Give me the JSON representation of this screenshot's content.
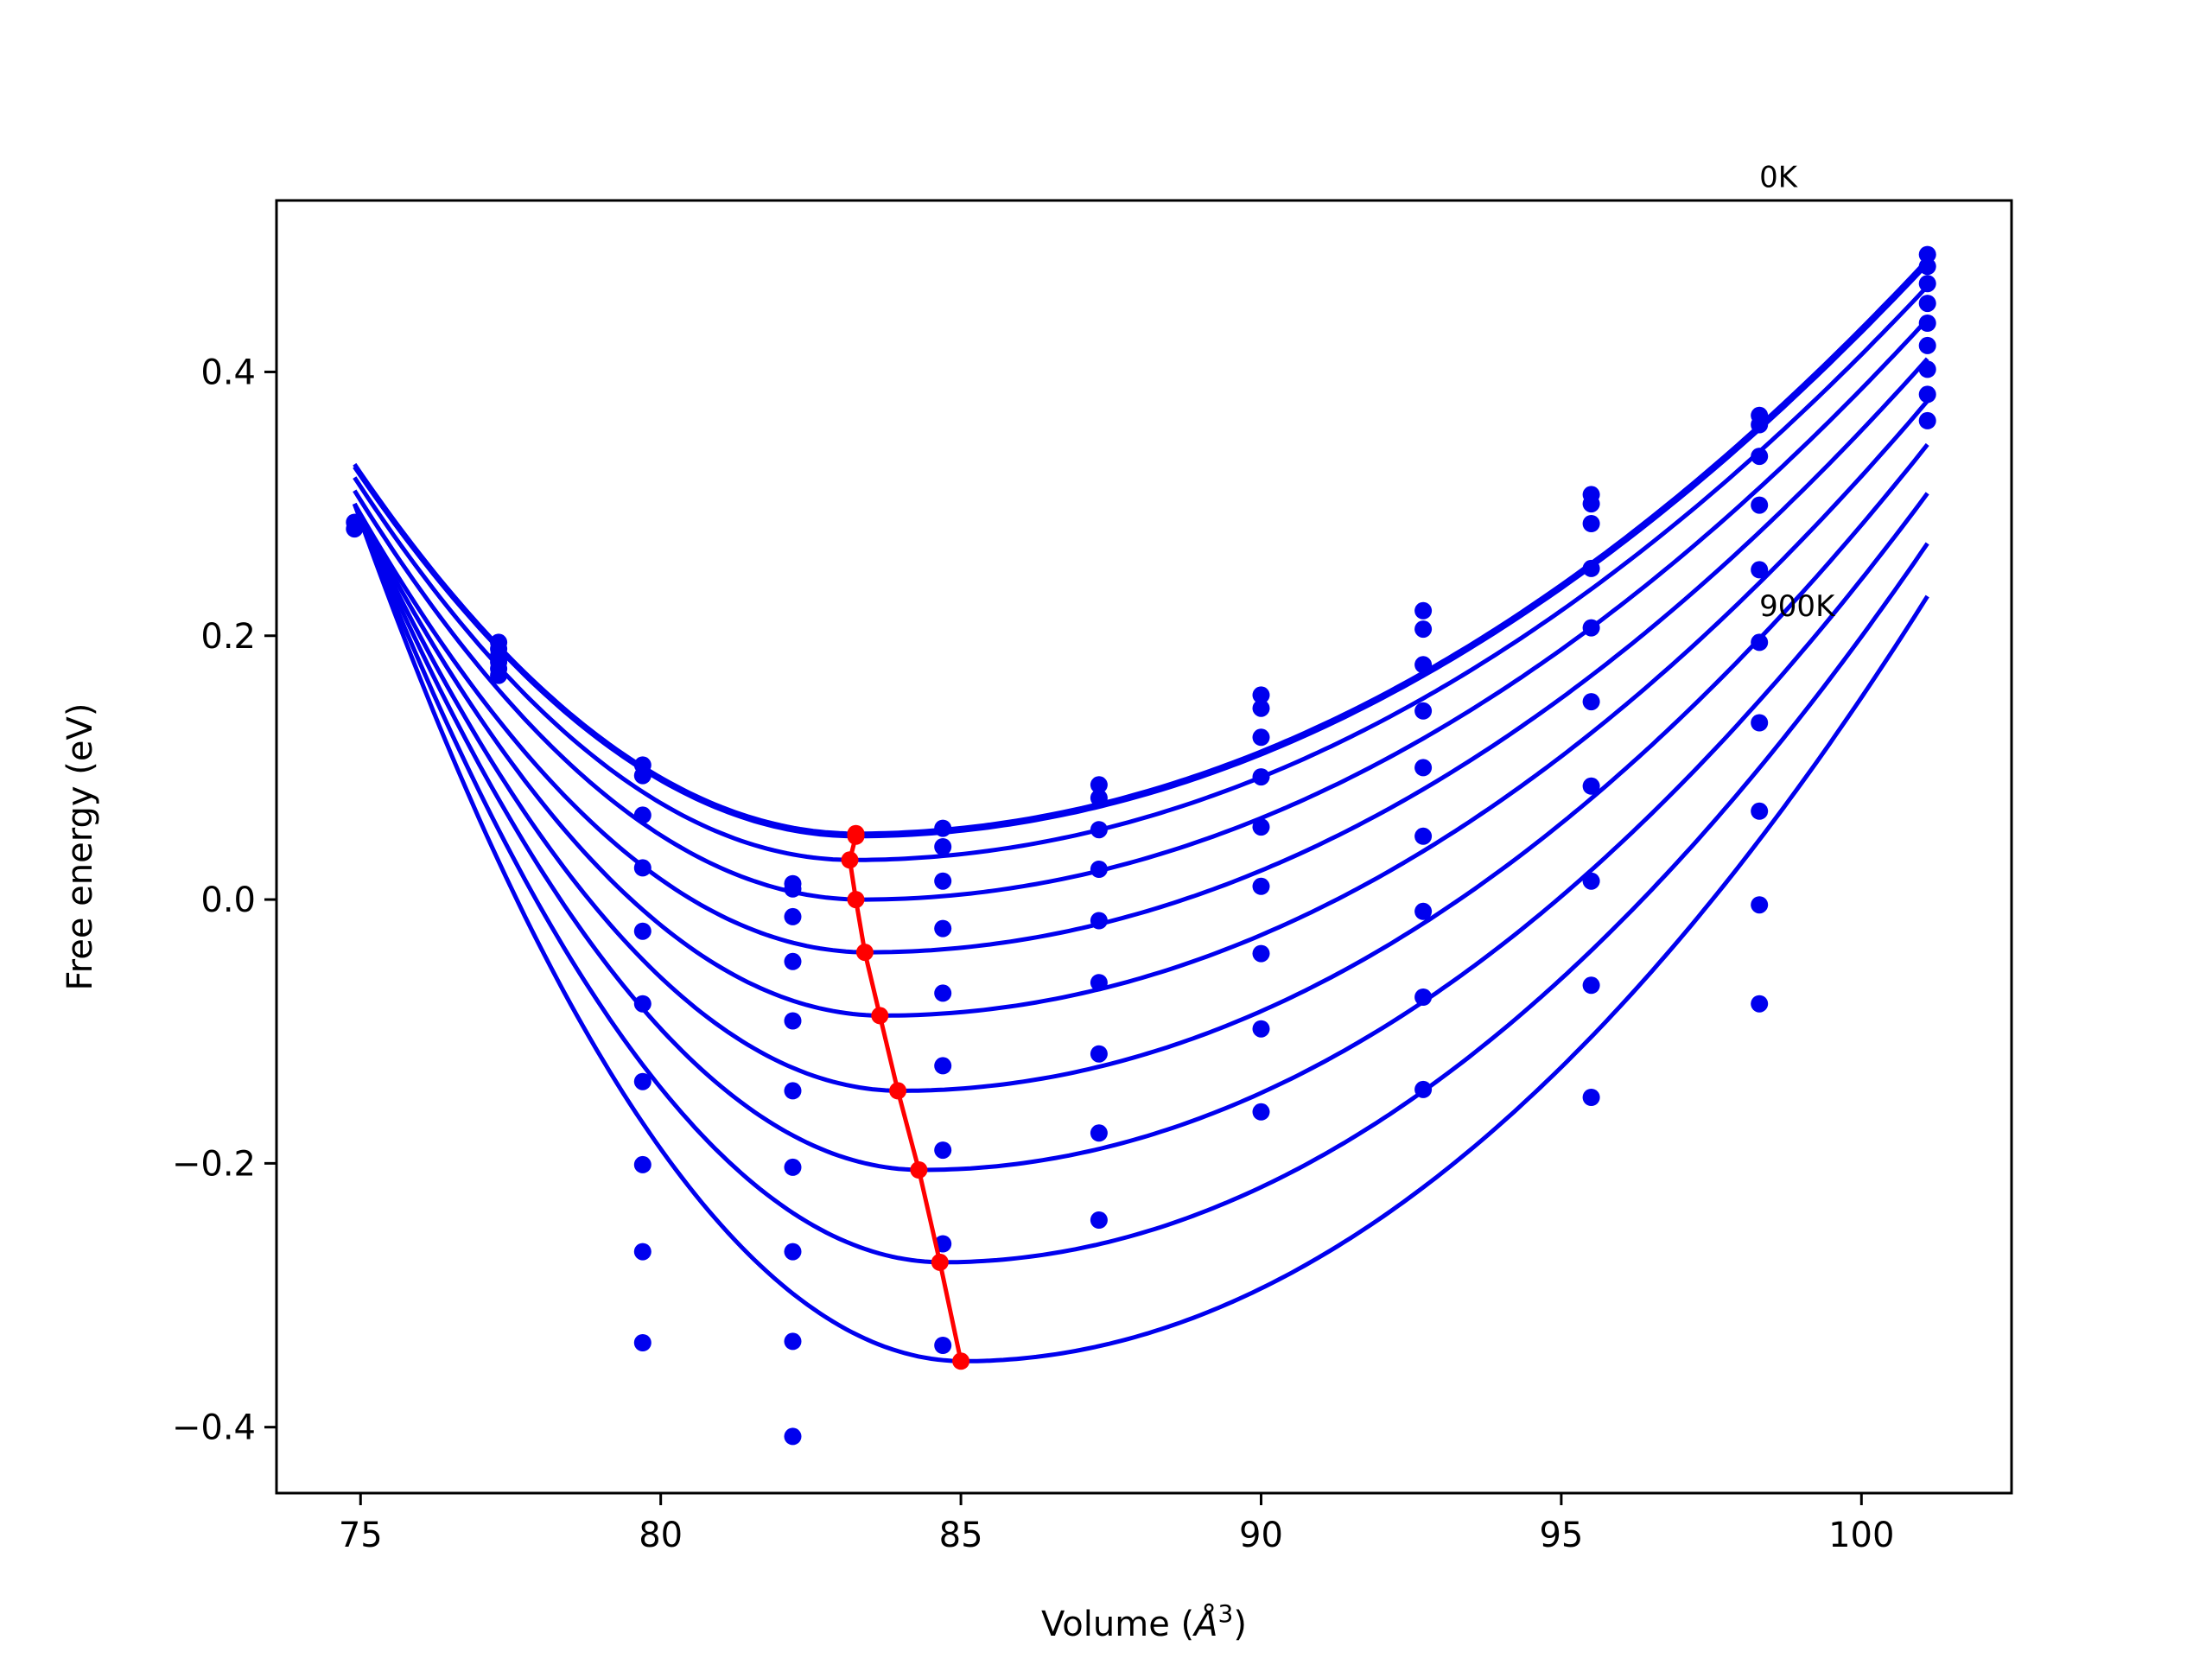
{
  "chart_data": {
    "type": "scatter",
    "title": "",
    "xlabel": "Volume (",
    "xlabel_symbol": "Å",
    "xlabel_exp": "3",
    "xlabel_close": ")",
    "ylabel": "Free energy (eV)",
    "xlim": [
      73.6,
      102.5
    ],
    "ylim": [
      -0.45,
      0.53
    ],
    "xticks": [
      75,
      80,
      85,
      90,
      95,
      100
    ],
    "xtick_labels": [
      "75",
      "80",
      "85",
      "90",
      "95",
      "100"
    ],
    "yticks": [
      -0.4,
      -0.2,
      0.0,
      0.2,
      0.4
    ],
    "ytick_labels": [
      "−0.4",
      "−0.2",
      "0.0",
      "0.2",
      "0.4"
    ],
    "grid": false,
    "colors": {
      "curve": "#0000ee",
      "points": "#0000ee",
      "min_path": "#ff0000",
      "axes": "#000000"
    },
    "annotations": [
      {
        "text": "0K",
        "x": 98.3,
        "y": 0.54
      },
      {
        "text": "900K",
        "x": 98.3,
        "y": 0.215
      }
    ],
    "fit_curves": [
      {
        "v0": 83.25,
        "e0": 0.05,
        "left": 0.33,
        "right": 0.485
      },
      {
        "v0": 83.25,
        "e0": 0.048,
        "left": 0.328,
        "right": 0.482
      },
      {
        "v0": 83.2,
        "e0": 0.03,
        "left": 0.32,
        "right": 0.465
      },
      {
        "v0": 83.35,
        "e0": 0.0,
        "left": 0.31,
        "right": 0.44
      },
      {
        "v0": 83.45,
        "e0": -0.04,
        "left": 0.3,
        "right": 0.41
      },
      {
        "v0": 83.7,
        "e0": -0.088,
        "left": 0.3,
        "right": 0.378
      },
      {
        "v0": 84.0,
        "e0": -0.145,
        "left": 0.3,
        "right": 0.345
      },
      {
        "v0": 84.35,
        "e0": -0.205,
        "left": 0.3,
        "right": 0.308
      },
      {
        "v0": 84.7,
        "e0": -0.275,
        "left": 0.3,
        "right": 0.27
      },
      {
        "v0": 85.05,
        "e0": -0.35,
        "left": 0.3,
        "right": 0.23
      }
    ],
    "data_points": [
      {
        "x": 74.9,
        "y": 0.281
      },
      {
        "x": 74.9,
        "y": 0.286
      },
      {
        "x": 77.3,
        "y": 0.195
      },
      {
        "x": 77.3,
        "y": 0.19
      },
      {
        "x": 77.3,
        "y": 0.185
      },
      {
        "x": 77.3,
        "y": 0.18
      },
      {
        "x": 77.3,
        "y": 0.175
      },
      {
        "x": 77.3,
        "y": 0.17
      },
      {
        "x": 79.7,
        "y": 0.102
      },
      {
        "x": 79.7,
        "y": 0.094
      },
      {
        "x": 79.7,
        "y": 0.064
      },
      {
        "x": 79.7,
        "y": 0.024
      },
      {
        "x": 79.7,
        "y": -0.024
      },
      {
        "x": 79.7,
        "y": -0.079
      },
      {
        "x": 79.7,
        "y": -0.138
      },
      {
        "x": 79.7,
        "y": -0.201
      },
      {
        "x": 79.7,
        "y": -0.267
      },
      {
        "x": 79.7,
        "y": -0.336
      },
      {
        "x": 82.2,
        "y": 0.012
      },
      {
        "x": 82.2,
        "y": 0.008
      },
      {
        "x": 82.2,
        "y": -0.013
      },
      {
        "x": 82.2,
        "y": -0.047
      },
      {
        "x": 82.2,
        "y": -0.092
      },
      {
        "x": 82.2,
        "y": -0.145
      },
      {
        "x": 82.2,
        "y": -0.203
      },
      {
        "x": 82.2,
        "y": -0.267
      },
      {
        "x": 82.2,
        "y": -0.335
      },
      {
        "x": 82.2,
        "y": -0.407
      },
      {
        "x": 84.7,
        "y": 0.054
      },
      {
        "x": 84.7,
        "y": 0.04
      },
      {
        "x": 84.7,
        "y": 0.014
      },
      {
        "x": 84.7,
        "y": -0.022
      },
      {
        "x": 84.7,
        "y": -0.071
      },
      {
        "x": 84.7,
        "y": -0.126
      },
      {
        "x": 84.7,
        "y": -0.19
      },
      {
        "x": 84.7,
        "y": -0.261
      },
      {
        "x": 84.7,
        "y": -0.338
      },
      {
        "x": 87.3,
        "y": 0.087
      },
      {
        "x": 87.3,
        "y": 0.077
      },
      {
        "x": 87.3,
        "y": 0.053
      },
      {
        "x": 87.3,
        "y": 0.023
      },
      {
        "x": 87.3,
        "y": -0.016
      },
      {
        "x": 87.3,
        "y": -0.063
      },
      {
        "x": 87.3,
        "y": -0.117
      },
      {
        "x": 87.3,
        "y": -0.177
      },
      {
        "x": 87.3,
        "y": -0.243
      },
      {
        "x": 90.0,
        "y": 0.155
      },
      {
        "x": 90.0,
        "y": 0.145
      },
      {
        "x": 90.0,
        "y": 0.123
      },
      {
        "x": 90.0,
        "y": 0.093
      },
      {
        "x": 90.0,
        "y": 0.055
      },
      {
        "x": 90.0,
        "y": 0.01
      },
      {
        "x": 90.0,
        "y": -0.041
      },
      {
        "x": 90.0,
        "y": -0.098
      },
      {
        "x": 90.0,
        "y": -0.161
      },
      {
        "x": 92.7,
        "y": 0.219
      },
      {
        "x": 92.7,
        "y": 0.205
      },
      {
        "x": 92.7,
        "y": 0.178
      },
      {
        "x": 92.7,
        "y": 0.143
      },
      {
        "x": 92.7,
        "y": 0.1
      },
      {
        "x": 92.7,
        "y": 0.048
      },
      {
        "x": 92.7,
        "y": -0.009
      },
      {
        "x": 92.7,
        "y": -0.074
      },
      {
        "x": 92.7,
        "y": -0.144
      },
      {
        "x": 95.5,
        "y": 0.307
      },
      {
        "x": 95.5,
        "y": 0.3
      },
      {
        "x": 95.5,
        "y": 0.285
      },
      {
        "x": 95.5,
        "y": 0.251
      },
      {
        "x": 95.5,
        "y": 0.206
      },
      {
        "x": 95.5,
        "y": 0.15
      },
      {
        "x": 95.5,
        "y": 0.086
      },
      {
        "x": 95.5,
        "y": 0.014
      },
      {
        "x": 95.5,
        "y": -0.065
      },
      {
        "x": 95.5,
        "y": -0.15
      },
      {
        "x": 98.3,
        "y": 0.367
      },
      {
        "x": 98.3,
        "y": 0.36
      },
      {
        "x": 98.3,
        "y": 0.336
      },
      {
        "x": 98.3,
        "y": 0.299
      },
      {
        "x": 98.3,
        "y": 0.25
      },
      {
        "x": 98.3,
        "y": 0.195
      },
      {
        "x": 98.3,
        "y": 0.134
      },
      {
        "x": 98.3,
        "y": 0.067
      },
      {
        "x": 98.3,
        "y": -0.004
      },
      {
        "x": 98.3,
        "y": -0.079
      },
      {
        "x": 101.1,
        "y": 0.489
      },
      {
        "x": 101.1,
        "y": 0.48
      },
      {
        "x": 101.1,
        "y": 0.467
      },
      {
        "x": 101.1,
        "y": 0.452
      },
      {
        "x": 101.1,
        "y": 0.437
      },
      {
        "x": 101.1,
        "y": 0.42
      },
      {
        "x": 101.1,
        "y": 0.402
      },
      {
        "x": 101.1,
        "y": 0.383
      },
      {
        "x": 101.1,
        "y": 0.363
      }
    ],
    "min_path": [
      {
        "x": 83.25,
        "y": 0.05
      },
      {
        "x": 83.25,
        "y": 0.048
      },
      {
        "x": 83.15,
        "y": 0.03
      },
      {
        "x": 83.25,
        "y": 0.0
      },
      {
        "x": 83.4,
        "y": -0.04
      },
      {
        "x": 83.65,
        "y": -0.088
      },
      {
        "x": 83.95,
        "y": -0.145
      },
      {
        "x": 84.3,
        "y": -0.205
      },
      {
        "x": 84.65,
        "y": -0.275
      },
      {
        "x": 85.0,
        "y": -0.35
      }
    ]
  }
}
